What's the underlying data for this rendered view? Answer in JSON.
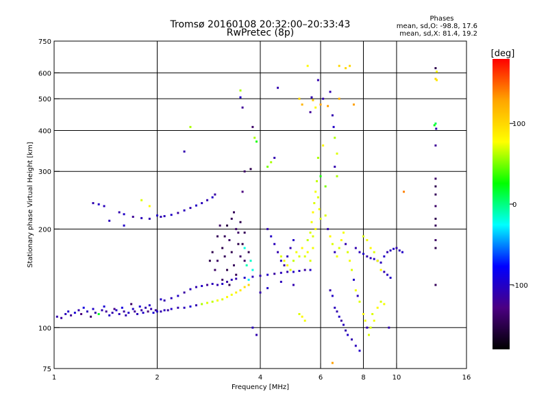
{
  "title_line1": "Tromsø 20160108 20:32:00–20:33:43",
  "title_line2": "RwPretec (8p)",
  "phase_info": {
    "heading": "Phases",
    "line_o": "mean, sd,O: -98.8, 17.6",
    "line_x": "mean, sd,X: 81.4, 19.2"
  },
  "colorbar": {
    "unit_label": "[deg]",
    "ticks": [
      {
        "value": 100,
        "label": "100"
      },
      {
        "value": 0,
        "label": "0"
      },
      {
        "value": -100,
        "label": "-100"
      }
    ],
    "range": [
      -180,
      180
    ],
    "colors": [
      "#000000",
      "#4b0082",
      "#0000ff",
      "#00ffff",
      "#00ff00",
      "#ffff00",
      "#ffa500",
      "#ff0000"
    ]
  },
  "chart_data": {
    "type": "scatter",
    "title": "Tromsø 20160108 20:32:00–20:33:43",
    "subtitle": "RwPretec (8p)",
    "xlabel": "Frequency [MHz]",
    "ylabel": "Stationary phase Virtual Height [km]",
    "x_scale": "log",
    "y_scale": "log",
    "xlim": [
      1,
      16
    ],
    "ylim": [
      75,
      750
    ],
    "x_ticks": [
      {
        "value": 1,
        "label": "1"
      },
      {
        "value": 2,
        "label": "2"
      },
      {
        "value": 4,
        "label": "4"
      },
      {
        "value": 6,
        "label": "6"
      },
      {
        "value": 8,
        "label": "8"
      },
      {
        "value": 10,
        "label": "10"
      },
      {
        "value": 16,
        "label": "16"
      }
    ],
    "y_ticks": [
      {
        "value": 75,
        "label": "75"
      },
      {
        "value": 100,
        "label": "100"
      },
      {
        "value": 200,
        "label": "200"
      },
      {
        "value": 300,
        "label": "300"
      },
      {
        "value": 400,
        "label": "400"
      },
      {
        "value": 500,
        "label": "500"
      },
      {
        "value": 600,
        "label": "600"
      },
      {
        "value": 750,
        "label": "750"
      }
    ],
    "x_gridlines": [
      2,
      4,
      6,
      8,
      10
    ],
    "y_gridlines": [
      100,
      200,
      300,
      400,
      500,
      600
    ],
    "color_variable": "phase [deg]",
    "points": [
      [
        1.02,
        108,
        -110
      ],
      [
        1.05,
        107,
        -115
      ],
      [
        1.08,
        110,
        -105
      ],
      [
        1.1,
        112,
        -100
      ],
      [
        1.12,
        109,
        -120
      ],
      [
        1.15,
        111,
        -95
      ],
      [
        1.18,
        113,
        -110
      ],
      [
        1.2,
        110,
        -130
      ],
      [
        1.22,
        115,
        -90
      ],
      [
        1.25,
        112,
        -105
      ],
      [
        1.28,
        108,
        -140
      ],
      [
        1.3,
        114,
        -100
      ],
      [
        1.32,
        111,
        -115
      ],
      [
        1.35,
        110,
        20
      ],
      [
        1.38,
        113,
        -110
      ],
      [
        1.4,
        116,
        -95
      ],
      [
        1.42,
        112,
        -120
      ],
      [
        1.45,
        109,
        -100
      ],
      [
        1.48,
        111,
        -110
      ],
      [
        1.5,
        114,
        -125
      ],
      [
        1.52,
        113,
        -100
      ],
      [
        1.55,
        110,
        -105
      ],
      [
        1.58,
        115,
        -90
      ],
      [
        1.6,
        112,
        -115
      ],
      [
        1.62,
        109,
        -110
      ],
      [
        1.65,
        111,
        -100
      ],
      [
        1.68,
        118,
        -140
      ],
      [
        1.7,
        114,
        -100
      ],
      [
        1.72,
        112,
        -120
      ],
      [
        1.75,
        110,
        -105
      ],
      [
        1.78,
        116,
        -95
      ],
      [
        1.8,
        113,
        -115
      ],
      [
        1.82,
        111,
        -100
      ],
      [
        1.85,
        115,
        -110
      ],
      [
        1.88,
        112,
        -130
      ],
      [
        1.9,
        117,
        -100
      ],
      [
        1.92,
        114,
        -110
      ],
      [
        1.95,
        111,
        -95
      ],
      [
        1.98,
        113,
        -120
      ],
      [
        2.0,
        112,
        -100
      ],
      [
        2.05,
        112,
        -110
      ],
      [
        2.1,
        113,
        -105
      ],
      [
        2.15,
        113,
        -115
      ],
      [
        2.2,
        114,
        -100
      ],
      [
        2.3,
        115,
        -110
      ],
      [
        2.4,
        115,
        -105
      ],
      [
        2.5,
        116,
        -95
      ],
      [
        2.6,
        117,
        -110
      ],
      [
        2.7,
        118,
        60
      ],
      [
        2.8,
        119,
        70
      ],
      [
        2.9,
        120,
        65
      ],
      [
        3.0,
        121,
        75
      ],
      [
        3.1,
        122,
        70
      ],
      [
        3.2,
        124,
        80
      ],
      [
        3.3,
        126,
        75
      ],
      [
        3.4,
        128,
        85
      ],
      [
        3.5,
        130,
        90
      ],
      [
        3.6,
        133,
        95
      ],
      [
        3.7,
        135,
        100
      ],
      [
        2.05,
        122,
        -100
      ],
      [
        2.1,
        121,
        -110
      ],
      [
        2.2,
        123,
        -105
      ],
      [
        2.3,
        125,
        -100
      ],
      [
        2.4,
        128,
        -115
      ],
      [
        2.5,
        131,
        -105
      ],
      [
        2.6,
        133,
        -110
      ],
      [
        2.7,
        134,
        -100
      ],
      [
        2.8,
        135,
        -120
      ],
      [
        2.9,
        136,
        -105
      ],
      [
        3.0,
        135,
        -110
      ],
      [
        3.1,
        136,
        -100
      ],
      [
        3.2,
        138,
        -115
      ],
      [
        3.3,
        140,
        -105
      ],
      [
        3.4,
        141,
        -110
      ],
      [
        3.6,
        142,
        -100
      ],
      [
        3.8,
        143,
        -105
      ],
      [
        4.0,
        144,
        -110
      ],
      [
        4.2,
        145,
        -100
      ],
      [
        4.4,
        146,
        -115
      ],
      [
        4.6,
        147,
        -105
      ],
      [
        4.8,
        148,
        -110
      ],
      [
        5.0,
        148,
        -100
      ],
      [
        5.2,
        149,
        -105
      ],
      [
        5.4,
        150,
        -115
      ],
      [
        5.6,
        150,
        -100
      ],
      [
        1.3,
        240,
        -110
      ],
      [
        1.35,
        238,
        -100
      ],
      [
        1.4,
        235,
        -105
      ],
      [
        1.55,
        225,
        -110
      ],
      [
        1.6,
        222,
        -100
      ],
      [
        1.7,
        218,
        -120
      ],
      [
        1.8,
        216,
        -105
      ],
      [
        1.9,
        215,
        -110
      ],
      [
        2.0,
        220,
        -100
      ],
      [
        2.05,
        218,
        -110
      ],
      [
        2.1,
        219,
        -105
      ],
      [
        2.2,
        221,
        -100
      ],
      [
        2.3,
        224,
        -115
      ],
      [
        2.4,
        228,
        -105
      ],
      [
        2.5,
        232,
        -110
      ],
      [
        2.6,
        236,
        -100
      ],
      [
        2.7,
        240,
        -105
      ],
      [
        2.8,
        245,
        -110
      ],
      [
        2.9,
        250,
        -100
      ],
      [
        2.95,
        255,
        -115
      ],
      [
        1.8,
        245,
        70
      ],
      [
        1.9,
        235,
        80
      ],
      [
        2.5,
        410,
        60
      ],
      [
        2.4,
        345,
        -110
      ],
      [
        1.6,
        205,
        -100
      ],
      [
        1.45,
        212,
        -105
      ],
      [
        3.0,
        160,
        -140
      ],
      [
        3.1,
        175,
        -150
      ],
      [
        3.15,
        190,
        -145
      ],
      [
        3.2,
        205,
        -155
      ],
      [
        3.25,
        185,
        -140
      ],
      [
        3.3,
        170,
        -150
      ],
      [
        3.35,
        155,
        -145
      ],
      [
        3.4,
        200,
        -140
      ],
      [
        3.45,
        180,
        -150
      ],
      [
        3.5,
        165,
        -140
      ],
      [
        3.3,
        215,
        -145
      ],
      [
        3.2,
        150,
        -150
      ],
      [
        3.1,
        140,
        -140
      ],
      [
        3.4,
        145,
        -145
      ],
      [
        3.5,
        210,
        -150
      ],
      [
        3.6,
        160,
        -140
      ],
      [
        3.55,
        180,
        -150
      ],
      [
        3.0,
        190,
        -145
      ],
      [
        2.9,
        170,
        -150
      ],
      [
        2.95,
        150,
        -140
      ],
      [
        3.35,
        225,
        -145
      ],
      [
        3.25,
        135,
        -150
      ],
      [
        3.45,
        195,
        -140
      ],
      [
        3.15,
        165,
        -145
      ],
      [
        2.85,
        160,
        -150
      ],
      [
        3.05,
        205,
        -140
      ],
      [
        3.6,
        195,
        -145
      ],
      [
        3.7,
        170,
        -150
      ],
      [
        3.6,
        175,
        -20
      ],
      [
        3.65,
        155,
        -10
      ],
      [
        3.7,
        140,
        -30
      ],
      [
        3.75,
        160,
        -15
      ],
      [
        3.8,
        150,
        -20
      ],
      [
        3.5,
        530,
        60
      ],
      [
        3.55,
        470,
        -120
      ],
      [
        3.5,
        505,
        -100
      ],
      [
        3.8,
        410,
        -140
      ],
      [
        3.85,
        380,
        60
      ],
      [
        3.75,
        305,
        -150
      ],
      [
        3.6,
        300,
        -140
      ],
      [
        3.55,
        260,
        -130
      ],
      [
        3.9,
        370,
        30
      ],
      [
        4.5,
        540,
        -110
      ],
      [
        4.3,
        320,
        60
      ],
      [
        4.4,
        330,
        -110
      ],
      [
        4.2,
        310,
        50
      ],
      [
        4.2,
        200,
        -110
      ],
      [
        4.3,
        190,
        -100
      ],
      [
        4.4,
        180,
        -105
      ],
      [
        4.5,
        170,
        -110
      ],
      [
        4.6,
        160,
        -100
      ],
      [
        4.7,
        155,
        -115
      ],
      [
        4.8,
        165,
        -105
      ],
      [
        4.9,
        175,
        -110
      ],
      [
        5.0,
        185,
        -100
      ],
      [
        4.6,
        165,
        70
      ],
      [
        4.7,
        160,
        75
      ],
      [
        4.8,
        155,
        80
      ],
      [
        4.9,
        150,
        70
      ],
      [
        5.0,
        160,
        65
      ],
      [
        5.1,
        170,
        75
      ],
      [
        5.2,
        165,
        70
      ],
      [
        5.3,
        175,
        80
      ],
      [
        5.4,
        165,
        70
      ],
      [
        5.5,
        170,
        75
      ],
      [
        5.6,
        160,
        70
      ],
      [
        5.7,
        175,
        75
      ],
      [
        5.5,
        185,
        65
      ],
      [
        5.6,
        195,
        70
      ],
      [
        5.65,
        210,
        75
      ],
      [
        5.7,
        225,
        80
      ],
      [
        5.75,
        240,
        70
      ],
      [
        5.8,
        260,
        75
      ],
      [
        5.85,
        280,
        65
      ],
      [
        5.9,
        250,
        70
      ],
      [
        5.95,
        230,
        75
      ],
      [
        6.0,
        215,
        70
      ],
      [
        5.8,
        200,
        80
      ],
      [
        5.7,
        190,
        70
      ],
      [
        5.5,
        630,
        80
      ],
      [
        5.3,
        480,
        120
      ],
      [
        5.2,
        500,
        100
      ],
      [
        5.6,
        455,
        -120
      ],
      [
        5.65,
        505,
        -110
      ],
      [
        5.7,
        495,
        110
      ],
      [
        5.8,
        470,
        80
      ],
      [
        5.9,
        570,
        -110
      ],
      [
        6.1,
        360,
        80
      ],
      [
        6.2,
        270,
        50
      ],
      [
        6.0,
        290,
        30
      ],
      [
        5.9,
        330,
        60
      ],
      [
        6.0,
        480,
        130
      ],
      [
        6.1,
        500,
        -110
      ],
      [
        6.3,
        475,
        130
      ],
      [
        6.4,
        525,
        -110
      ],
      [
        6.5,
        445,
        -110
      ],
      [
        6.55,
        410,
        -100
      ],
      [
        6.6,
        380,
        60
      ],
      [
        6.7,
        340,
        70
      ],
      [
        6.8,
        630,
        100
      ],
      [
        7.1,
        620,
        100
      ],
      [
        7.3,
        630,
        100
      ],
      [
        7.5,
        480,
        130
      ],
      [
        6.6,
        310,
        -110
      ],
      [
        6.7,
        290,
        60
      ],
      [
        6.2,
        220,
        70
      ],
      [
        6.3,
        200,
        -110
      ],
      [
        6.4,
        190,
        80
      ],
      [
        6.5,
        180,
        70
      ],
      [
        6.6,
        170,
        -105
      ],
      [
        6.7,
        165,
        75
      ],
      [
        6.8,
        175,
        70
      ],
      [
        6.9,
        185,
        80
      ],
      [
        7.0,
        195,
        75
      ],
      [
        7.1,
        180,
        -110
      ],
      [
        7.2,
        170,
        70
      ],
      [
        7.3,
        160,
        75
      ],
      [
        7.4,
        150,
        70
      ],
      [
        7.5,
        140,
        -100
      ],
      [
        7.6,
        130,
        75
      ],
      [
        7.7,
        125,
        -105
      ],
      [
        7.8,
        120,
        70
      ],
      [
        8.0,
        110,
        80
      ],
      [
        8.1,
        105,
        75
      ],
      [
        8.2,
        100,
        -110
      ],
      [
        8.3,
        95,
        70
      ],
      [
        6.4,
        130,
        -110
      ],
      [
        6.5,
        125,
        -100
      ],
      [
        6.6,
        115,
        -105
      ],
      [
        6.7,
        112,
        -110
      ],
      [
        6.8,
        108,
        -100
      ],
      [
        6.9,
        105,
        -115
      ],
      [
        7.0,
        102,
        -105
      ],
      [
        7.1,
        98,
        -110
      ],
      [
        7.2,
        95,
        -100
      ],
      [
        7.4,
        92,
        -110
      ],
      [
        7.6,
        88,
        -105
      ],
      [
        7.8,
        85,
        -100
      ],
      [
        6.5,
        78,
        130
      ],
      [
        7.6,
        175,
        -110
      ],
      [
        7.8,
        170,
        -105
      ],
      [
        8.0,
        168,
        -100
      ],
      [
        8.2,
        165,
        -110
      ],
      [
        8.4,
        163,
        -105
      ],
      [
        8.6,
        162,
        -100
      ],
      [
        8.8,
        160,
        -110
      ],
      [
        9.0,
        158,
        -105
      ],
      [
        9.2,
        165,
        -100
      ],
      [
        9.4,
        170,
        -110
      ],
      [
        9.6,
        172,
        -105
      ],
      [
        9.8,
        174,
        -100
      ],
      [
        10.0,
        175,
        -110
      ],
      [
        10.2,
        172,
        -105
      ],
      [
        10.4,
        170,
        -100
      ],
      [
        8.0,
        190,
        70
      ],
      [
        8.2,
        185,
        75
      ],
      [
        8.4,
        175,
        80
      ],
      [
        8.6,
        170,
        70
      ],
      [
        8.8,
        160,
        75
      ],
      [
        9.0,
        150,
        80
      ],
      [
        9.2,
        148,
        -110
      ],
      [
        9.4,
        145,
        -105
      ],
      [
        9.6,
        142,
        -100
      ],
      [
        9.0,
        120,
        70
      ],
      [
        9.2,
        118,
        75
      ],
      [
        8.8,
        115,
        80
      ],
      [
        8.5,
        110,
        70
      ],
      [
        8.6,
        105,
        75
      ],
      [
        8.4,
        100,
        70
      ],
      [
        13.0,
        620,
        -150
      ],
      [
        13.1,
        605,
        80
      ],
      [
        13.0,
        575,
        100
      ],
      [
        13.1,
        570,
        90
      ],
      [
        13.0,
        420,
        10
      ],
      [
        12.9,
        415,
        20
      ],
      [
        13.05,
        405,
        -110
      ],
      [
        13.0,
        360,
        -120
      ],
      [
        13.0,
        285,
        -140
      ],
      [
        13.0,
        270,
        -150
      ],
      [
        13.0,
        255,
        -145
      ],
      [
        13.0,
        235,
        -140
      ],
      [
        13.0,
        215,
        -150
      ],
      [
        13.0,
        205,
        -145
      ],
      [
        13.0,
        185,
        -140
      ],
      [
        13.0,
        175,
        -150
      ],
      [
        13.0,
        135,
        -145
      ],
      [
        9.5,
        100,
        -110
      ],
      [
        10.5,
        260,
        140
      ],
      [
        6.8,
        500,
        120
      ],
      [
        5.2,
        110,
        70
      ],
      [
        5.3,
        108,
        80
      ],
      [
        5.4,
        105,
        75
      ],
      [
        5.0,
        135,
        -110
      ],
      [
        4.6,
        138,
        -105
      ],
      [
        4.2,
        132,
        -100
      ],
      [
        4.0,
        128,
        -110
      ],
      [
        3.9,
        95,
        -110
      ],
      [
        3.8,
        100,
        -105
      ]
    ]
  }
}
